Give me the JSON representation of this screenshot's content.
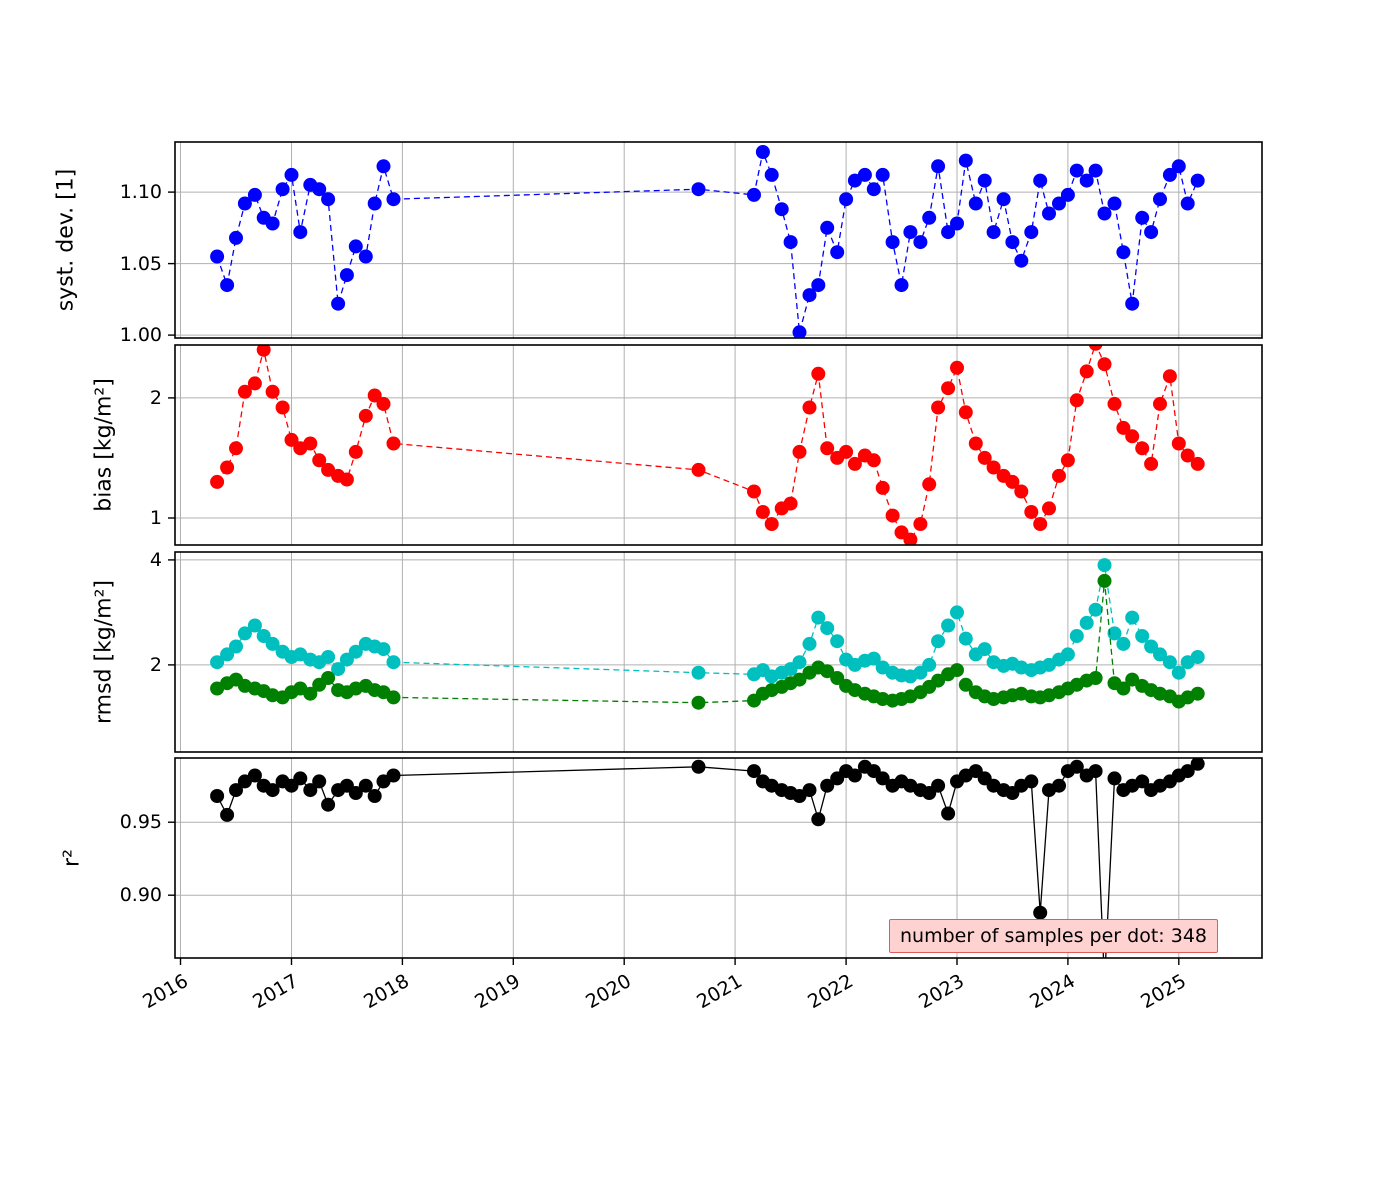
{
  "chart_data": {
    "type": "line",
    "title": "",
    "grid": true,
    "legend": "none",
    "xlim": [
      2015.95,
      2025.75
    ],
    "xticks": [
      2016,
      2017,
      2018,
      2019,
      2020,
      2021,
      2022,
      2023,
      2024,
      2025
    ],
    "xtick_labels": [
      "2016",
      "2017",
      "2018",
      "2019",
      "2020",
      "2021",
      "2022",
      "2023",
      "2024",
      "2025"
    ],
    "x": [
      2016.33,
      2016.42,
      2016.5,
      2016.58,
      2016.67,
      2016.75,
      2016.83,
      2016.92,
      2017.0,
      2017.08,
      2017.17,
      2017.25,
      2017.33,
      2017.42,
      2017.5,
      2017.58,
      2017.67,
      2017.75,
      2017.83,
      2017.92,
      2020.67,
      2021.17,
      2021.25,
      2021.33,
      2021.42,
      2021.5,
      2021.58,
      2021.67,
      2021.75,
      2021.83,
      2021.92,
      2022.0,
      2022.08,
      2022.17,
      2022.25,
      2022.33,
      2022.42,
      2022.5,
      2022.58,
      2022.67,
      2022.75,
      2022.83,
      2022.92,
      2023.0,
      2023.08,
      2023.17,
      2023.25,
      2023.33,
      2023.42,
      2023.5,
      2023.58,
      2023.67,
      2023.75,
      2023.83,
      2023.92,
      2024.0,
      2024.08,
      2024.17,
      2024.25,
      2024.33,
      2024.42,
      2024.5,
      2024.58,
      2024.67,
      2024.75,
      2024.83,
      2024.92,
      2025.0,
      2025.08,
      2025.17
    ],
    "panels": [
      {
        "ylabel": "syst. dev. [1]",
        "ylim": [
          0.998,
          1.135
        ],
        "ytick_values": [
          1.0,
          1.05,
          1.1
        ],
        "ytick_labels": [
          "1.00",
          "1.05",
          "1.10"
        ],
        "series": [
          {
            "name": "syst-dev",
            "color": "#0000ff",
            "linestyle": "dashed",
            "values": [
              1.055,
              1.035,
              1.068,
              1.092,
              1.098,
              1.082,
              1.078,
              1.102,
              1.112,
              1.072,
              1.105,
              1.102,
              1.095,
              1.022,
              1.042,
              1.062,
              1.055,
              1.092,
              1.118,
              1.095,
              1.102,
              1.098,
              1.128,
              1.112,
              1.088,
              1.065,
              1.002,
              1.028,
              1.035,
              1.075,
              1.058,
              1.095,
              1.108,
              1.112,
              1.102,
              1.112,
              1.065,
              1.035,
              1.072,
              1.065,
              1.082,
              1.118,
              1.072,
              1.078,
              1.122,
              1.092,
              1.108,
              1.072,
              1.095,
              1.065,
              1.052,
              1.072,
              1.108,
              1.085,
              1.092,
              1.098,
              1.115,
              1.108,
              1.115,
              1.085,
              1.092,
              1.058,
              1.022,
              1.082,
              1.072,
              1.095,
              1.112,
              1.118,
              1.092,
              1.108
            ]
          }
        ]
      },
      {
        "ylabel": "bias [kg/m²]",
        "ylim": [
          0.775,
          2.44
        ],
        "ytick_values": [
          1,
          2
        ],
        "ytick_labels": [
          "1",
          "2"
        ],
        "series": [
          {
            "name": "bias",
            "color": "#ff0000",
            "linestyle": "dashed",
            "values": [
              1.3,
              1.42,
              1.58,
              2.05,
              2.12,
              2.4,
              2.05,
              1.92,
              1.65,
              1.58,
              1.62,
              1.48,
              1.4,
              1.35,
              1.32,
              1.55,
              1.85,
              2.02,
              1.95,
              1.62,
              1.4,
              1.22,
              1.05,
              0.95,
              1.08,
              1.12,
              1.55,
              1.92,
              2.2,
              1.58,
              1.5,
              1.55,
              1.45,
              1.52,
              1.48,
              1.25,
              1.02,
              0.88,
              0.82,
              0.95,
              1.28,
              1.92,
              2.08,
              2.25,
              1.88,
              1.62,
              1.5,
              1.42,
              1.35,
              1.3,
              1.22,
              1.05,
              0.95,
              1.08,
              1.35,
              1.48,
              1.98,
              2.22,
              2.45,
              2.28,
              1.95,
              1.75,
              1.68,
              1.58,
              1.45,
              1.95,
              2.18,
              1.62,
              1.52,
              1.45
            ]
          }
        ]
      },
      {
        "ylabel": "rmsd [kg/m²]",
        "ylim": [
          0.34,
          4.15
        ],
        "ytick_values": [
          2,
          4
        ],
        "ytick_labels": [
          "2",
          "4"
        ],
        "series": [
          {
            "name": "rmsd-total",
            "color": "#00bfbf",
            "linestyle": "dashed",
            "values": [
              2.05,
              2.2,
              2.35,
              2.6,
              2.75,
              2.55,
              2.4,
              2.25,
              2.15,
              2.2,
              2.1,
              2.05,
              2.15,
              1.92,
              2.1,
              2.25,
              2.4,
              2.35,
              2.3,
              2.05,
              1.85,
              1.82,
              1.9,
              1.78,
              1.85,
              1.92,
              2.05,
              2.4,
              2.9,
              2.7,
              2.45,
              2.1,
              2.0,
              2.08,
              2.12,
              1.95,
              1.85,
              1.8,
              1.78,
              1.85,
              2.0,
              2.45,
              2.75,
              3.0,
              2.5,
              2.2,
              2.3,
              2.05,
              1.98,
              2.02,
              1.95,
              1.9,
              1.95,
              2.0,
              2.1,
              2.2,
              2.55,
              2.8,
              3.05,
              3.9,
              2.6,
              2.4,
              2.9,
              2.55,
              2.35,
              2.2,
              2.05,
              1.85,
              2.05,
              2.15
            ]
          },
          {
            "name": "rmsd-anomaly",
            "color": "#008000",
            "linestyle": "dashed",
            "values": [
              1.55,
              1.65,
              1.72,
              1.6,
              1.55,
              1.5,
              1.42,
              1.38,
              1.48,
              1.55,
              1.45,
              1.62,
              1.75,
              1.52,
              1.48,
              1.55,
              1.6,
              1.52,
              1.48,
              1.38,
              1.28,
              1.32,
              1.45,
              1.52,
              1.58,
              1.65,
              1.72,
              1.85,
              1.95,
              1.88,
              1.75,
              1.6,
              1.52,
              1.45,
              1.4,
              1.35,
              1.32,
              1.35,
              1.4,
              1.48,
              1.58,
              1.7,
              1.82,
              1.9,
              1.62,
              1.48,
              1.4,
              1.35,
              1.38,
              1.42,
              1.45,
              1.4,
              1.38,
              1.42,
              1.48,
              1.55,
              1.62,
              1.7,
              1.75,
              3.6,
              1.65,
              1.55,
              1.72,
              1.6,
              1.52,
              1.45,
              1.4,
              1.3,
              1.38,
              1.45
            ]
          }
        ]
      },
      {
        "ylabel": "r²",
        "ylim": [
          0.857,
          0.994
        ],
        "ytick_values": [
          0.9,
          0.95
        ],
        "ytick_labels": [
          "0.90",
          "0.95"
        ],
        "series": [
          {
            "name": "r2",
            "color": "#000000",
            "linestyle": "solid",
            "values": [
              0.968,
              0.955,
              0.972,
              0.978,
              0.982,
              0.975,
              0.972,
              0.978,
              0.975,
              0.98,
              0.972,
              0.978,
              0.962,
              0.972,
              0.975,
              0.97,
              0.975,
              0.968,
              0.978,
              0.982,
              0.988,
              0.985,
              0.978,
              0.975,
              0.972,
              0.97,
              0.968,
              0.972,
              0.952,
              0.975,
              0.98,
              0.985,
              0.982,
              0.988,
              0.985,
              0.98,
              0.975,
              0.978,
              0.975,
              0.972,
              0.97,
              0.975,
              0.956,
              0.978,
              0.982,
              0.985,
              0.98,
              0.975,
              0.972,
              0.97,
              0.975,
              0.978,
              0.888,
              0.972,
              0.975,
              0.985,
              0.988,
              0.982,
              0.985,
              0.84,
              0.98,
              0.972,
              0.975,
              0.978,
              0.972,
              0.975,
              0.978,
              0.982,
              0.985,
              0.99
            ]
          }
        ]
      }
    ],
    "annotation": {
      "text": "number of samples per dot: 348",
      "bg": "#ffd2d2",
      "border": "#e05c5c"
    },
    "colors": {
      "grid": "#b0b0b0",
      "spine": "#000000"
    }
  }
}
